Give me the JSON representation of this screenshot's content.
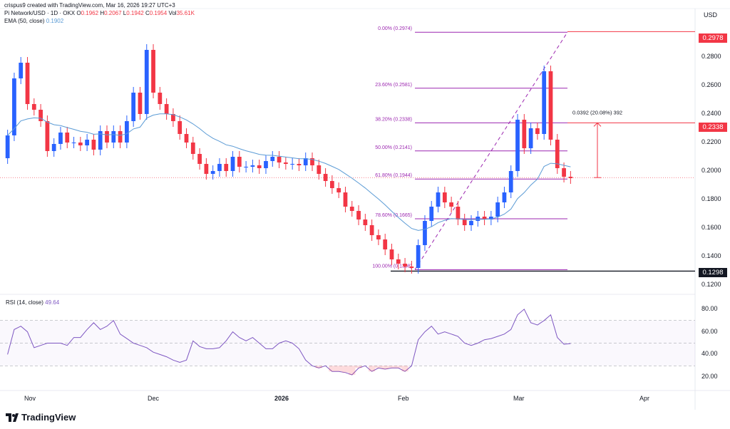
{
  "header": {
    "creator": "crispus9 created with TradingView.com, Mar 16, 2026 19:27 UTC+3",
    "symbol": "Pi Network/USD · 1D · OKX",
    "o_label": "O",
    "o": "0.1962",
    "h_label": "H",
    "h": "0.2067",
    "l_label": "L",
    "l": "0.1942",
    "c_label": "C",
    "c": "0.1954",
    "vol_label": "Vol",
    "vol": "35.61K",
    "ema_label": "EMA (50, close)",
    "ema": "0.1902",
    "currency": "USD"
  },
  "price_axis": [
    "0.2800",
    "0.2600",
    "0.2400",
    "0.2200",
    "0.2000",
    "0.1800",
    "0.1600",
    "0.1400",
    "0.1200"
  ],
  "price_tags": {
    "top": "0.2978",
    "mid": "0.2338",
    "low": "0.1298"
  },
  "fib_levels": [
    {
      "label": "0.00% (0.2974)"
    },
    {
      "label": "23.60% (0.2581)"
    },
    {
      "label": "38.20% (0.2338)"
    },
    {
      "label": "50.00% (0.2141)"
    },
    {
      "label": "61.80% (0.1944)"
    },
    {
      "label": "78.60% (0.1665)"
    },
    {
      "label": "100.00% (0.1308)"
    }
  ],
  "measure_label": "0.0392 (20.08%) 392",
  "rsi": {
    "label": "RSI (14, close)",
    "value": "49.64",
    "axis": [
      "80.00",
      "60.00",
      "40.00",
      "20.00"
    ]
  },
  "time_axis": [
    "Nov",
    "Dec",
    "2026",
    "Feb",
    "Mar",
    "Apr"
  ],
  "brand": "TradingView",
  "colors": {
    "up": "#2962ff",
    "down": "#f23645",
    "fib": "#9c27b0",
    "ema": "#5b9bd5",
    "rsi": "#7e57c2"
  },
  "chart_data": [
    {
      "type": "candlestick",
      "title": "Pi Network/USD · 1D · OKX",
      "ylim": [
        0.12,
        0.3
      ],
      "series": [
        {
          "name": "EMA (50, close)",
          "last": 0.1902
        },
        {
          "name": "Fibonacci retracement",
          "levels": [
            0.2974,
            0.2581,
            0.2338,
            0.2141,
            0.1944,
            0.1665,
            0.1308
          ]
        }
      ],
      "candles": [
        [
          0.209,
          0.225
        ],
        [
          0.225,
          0.265
        ],
        [
          0.265,
          0.276
        ],
        [
          0.276,
          0.247
        ],
        [
          0.247,
          0.243
        ],
        [
          0.243,
          0.235
        ],
        [
          0.235,
          0.214
        ],
        [
          0.214,
          0.219
        ],
        [
          0.219,
          0.227
        ],
        [
          0.227,
          0.22
        ],
        [
          0.22,
          0.22
        ],
        [
          0.22,
          0.218
        ],
        [
          0.218,
          0.222
        ],
        [
          0.222,
          0.215
        ],
        [
          0.215,
          0.228
        ],
        [
          0.228,
          0.22
        ],
        [
          0.22,
          0.228
        ],
        [
          0.228,
          0.22
        ],
        [
          0.22,
          0.235
        ],
        [
          0.235,
          0.255
        ],
        [
          0.255,
          0.24
        ],
        [
          0.24,
          0.285
        ],
        [
          0.285,
          0.255
        ],
        [
          0.255,
          0.247
        ],
        [
          0.247,
          0.24
        ],
        [
          0.24,
          0.235
        ],
        [
          0.235,
          0.226
        ],
        [
          0.226,
          0.22
        ],
        [
          0.22,
          0.212
        ],
        [
          0.212,
          0.205
        ],
        [
          0.205,
          0.198
        ],
        [
          0.198,
          0.2
        ],
        [
          0.2,
          0.205
        ],
        [
          0.205,
          0.2
        ],
        [
          0.2,
          0.21
        ],
        [
          0.21,
          0.203
        ],
        [
          0.203,
          0.203
        ],
        [
          0.203,
          0.204
        ],
        [
          0.204,
          0.202
        ],
        [
          0.202,
          0.207
        ],
        [
          0.207,
          0.21
        ],
        [
          0.21,
          0.206
        ],
        [
          0.206,
          0.205
        ],
        [
          0.205,
          0.205
        ],
        [
          0.205,
          0.204
        ],
        [
          0.204,
          0.209
        ],
        [
          0.209,
          0.204
        ],
        [
          0.204,
          0.198
        ],
        [
          0.198,
          0.193
        ],
        [
          0.193,
          0.188
        ],
        [
          0.188,
          0.185
        ],
        [
          0.185,
          0.175
        ],
        [
          0.175,
          0.172
        ],
        [
          0.172,
          0.166
        ],
        [
          0.166,
          0.162
        ],
        [
          0.162,
          0.155
        ],
        [
          0.155,
          0.152
        ],
        [
          0.152,
          0.145
        ],
        [
          0.145,
          0.138
        ],
        [
          0.138,
          0.135
        ],
        [
          0.135,
          0.133
        ],
        [
          0.133,
          0.132
        ],
        [
          0.132,
          0.148
        ],
        [
          0.148,
          0.165
        ],
        [
          0.165,
          0.175
        ],
        [
          0.175,
          0.185
        ],
        [
          0.185,
          0.178
        ],
        [
          0.178,
          0.175
        ],
        [
          0.175,
          0.166
        ],
        [
          0.166,
          0.162
        ],
        [
          0.162,
          0.165
        ],
        [
          0.165,
          0.168
        ],
        [
          0.168,
          0.166
        ],
        [
          0.166,
          0.168
        ],
        [
          0.168,
          0.178
        ],
        [
          0.178,
          0.185
        ],
        [
          0.185,
          0.2
        ],
        [
          0.2,
          0.236
        ],
        [
          0.236,
          0.216
        ],
        [
          0.216,
          0.23
        ],
        [
          0.23,
          0.226
        ],
        [
          0.226,
          0.27
        ],
        [
          0.27,
          0.222
        ],
        [
          0.222,
          0.202
        ],
        [
          0.202,
          0.196
        ],
        [
          0.196,
          0.195
        ]
      ],
      "rsi": [
        40,
        62,
        65,
        60,
        46,
        48,
        50,
        50,
        50,
        48,
        55,
        55,
        62,
        68,
        62,
        65,
        70,
        58,
        54,
        50,
        48,
        46,
        42,
        40,
        38,
        35,
        33,
        35,
        52,
        47,
        45,
        45,
        46,
        52,
        60,
        55,
        52,
        55,
        50,
        45,
        45,
        50,
        52,
        50,
        45,
        35,
        30,
        28,
        30,
        25,
        25,
        24,
        22,
        28,
        30,
        25,
        28,
        27,
        28,
        28,
        25,
        30,
        53,
        60,
        65,
        58,
        60,
        58,
        56,
        50,
        48,
        50,
        53,
        54,
        56,
        58,
        62,
        75,
        80,
        68,
        66,
        70,
        75,
        55,
        49,
        49.64
      ],
      "rsi_ylim": [
        10,
        90
      ]
    }
  ]
}
